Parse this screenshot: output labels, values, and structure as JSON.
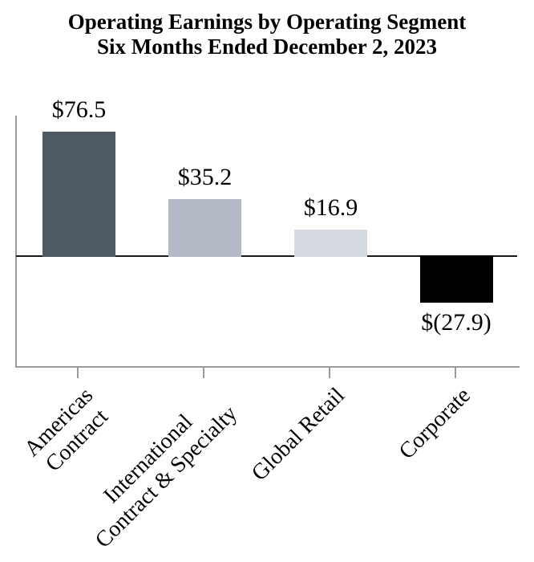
{
  "title": {
    "line1": "Operating Earnings by Operating Segment",
    "line2": "Six Months Ended December 2, 2023"
  },
  "chart_data": {
    "type": "bar",
    "title": "Operating Earnings by Operating Segment",
    "subtitle": "Six Months Ended December 2, 2023",
    "categories": [
      "Americas\nContract",
      "International\nContract & Specialty",
      "Global Retail",
      "Corporate"
    ],
    "values": [
      76.5,
      35.2,
      16.9,
      -27.9
    ],
    "data_labels": [
      "$76.5",
      "$35.2",
      "$16.9",
      "$(27.9)"
    ],
    "bar_colors": [
      "#4F5A64",
      "#B3BCC6",
      "#D5DBE1",
      "#000000"
    ],
    "baseline": 0,
    "ylim": [
      -68,
      86
    ],
    "xlabel": "",
    "ylabel": "",
    "grid": false,
    "legend": false,
    "x_tick_label_rotation_deg": 45
  }
}
